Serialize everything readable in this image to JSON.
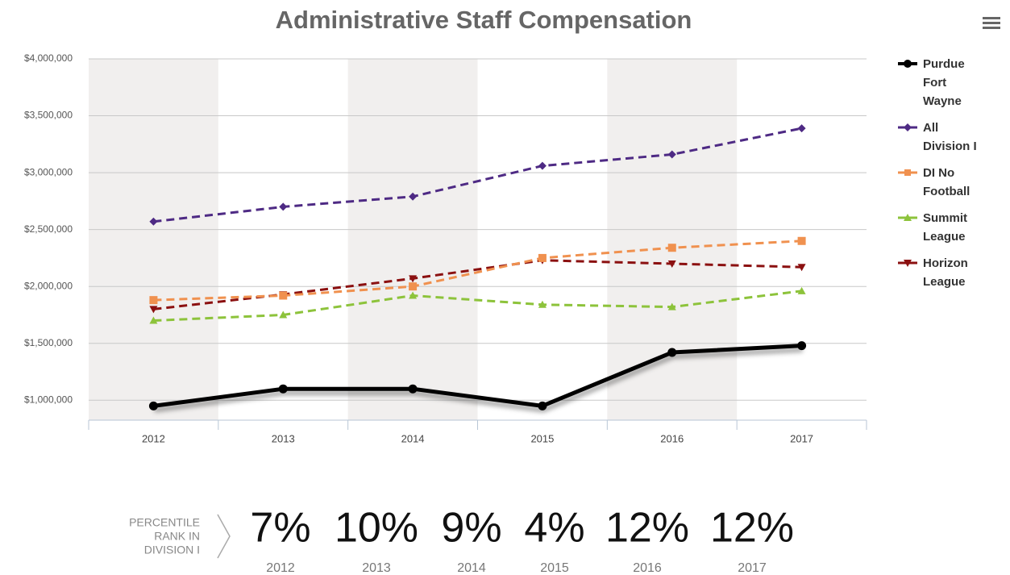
{
  "chart_data": {
    "type": "line",
    "title": "Administrative Staff Compensation",
    "categories": [
      "2012",
      "2013",
      "2014",
      "2015",
      "2016",
      "2017"
    ],
    "series": [
      {
        "name": "Purdue Fort Wayne",
        "color": "#000000",
        "marker": "circle",
        "line_style": "solid",
        "values": [
          950000,
          1100000,
          1100000,
          950000,
          1420000,
          1480000
        ]
      },
      {
        "name": "All Division I",
        "color": "#4e2a84",
        "marker": "diamond",
        "line_style": "dashed",
        "values": [
          2570000,
          2700000,
          2790000,
          3060000,
          3160000,
          3390000
        ]
      },
      {
        "name": "DI No Football",
        "color": "#f0914f",
        "marker": "square",
        "line_style": "dashed",
        "values": [
          1880000,
          1920000,
          2000000,
          2250000,
          2340000,
          2400000
        ]
      },
      {
        "name": "Summit League",
        "color": "#8dc33b",
        "marker": "triangle",
        "line_style": "dashed",
        "values": [
          1700000,
          1750000,
          1920000,
          1840000,
          1820000,
          1960000
        ]
      },
      {
        "name": "Horizon League",
        "color": "#8b1010",
        "marker": "triangle-down",
        "line_style": "dashed",
        "values": [
          1800000,
          1930000,
          2070000,
          2230000,
          2200000,
          2170000
        ]
      }
    ],
    "ylim": [
      825000,
      4000000
    ],
    "yticks": [
      {
        "value": 1000000,
        "label": "$1,000,000"
      },
      {
        "value": 1500000,
        "label": "$1,500,000"
      },
      {
        "value": 2000000,
        "label": "$2,000,000"
      },
      {
        "value": 2500000,
        "label": "$2,500,000"
      },
      {
        "value": 3000000,
        "label": "$3,000,000"
      },
      {
        "value": 3500000,
        "label": "$3,500,000"
      },
      {
        "value": 4000000,
        "label": "$4,000,000"
      }
    ],
    "grid": true,
    "legend": "right"
  },
  "percentile": {
    "label_lines": [
      "PERCENTILE",
      "RANK IN",
      "DIVISION I"
    ],
    "values": [
      7,
      10,
      9,
      4,
      12,
      12
    ],
    "value_labels": [
      "7%",
      "10%",
      "9%",
      "4%",
      "12%",
      "12%"
    ]
  }
}
